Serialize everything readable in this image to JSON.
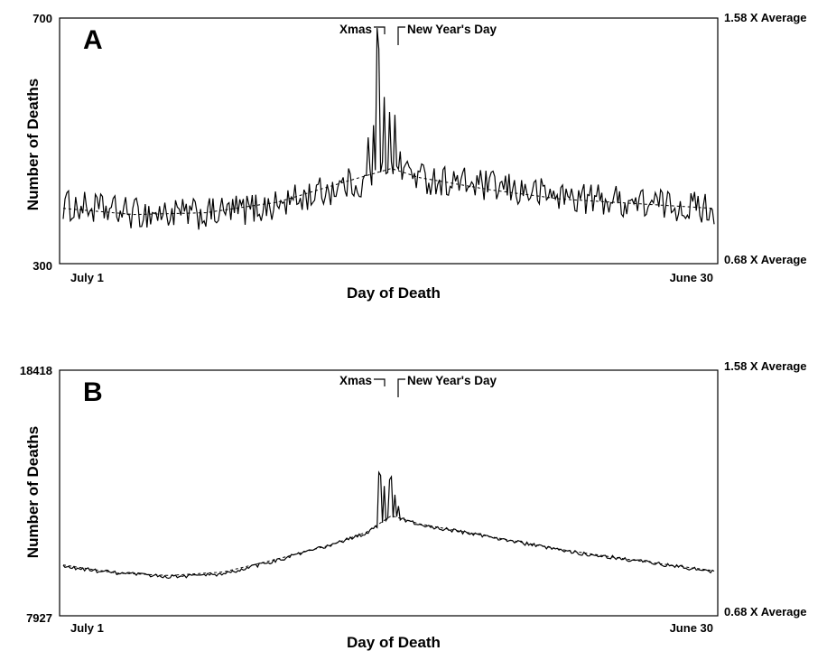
{
  "chart_data": [
    {
      "type": "line",
      "panel_label": "A",
      "title": "",
      "xlabel": "Day of Death",
      "ylabel": "Number of Deaths",
      "ylim": [
        300,
        700
      ],
      "y_ticks": [
        "700",
        "300"
      ],
      "right_axis_labels": {
        "top": "1.58 X Average",
        "bottom": "0.68 X Average"
      },
      "x_tick_labels": {
        "start": "July 1",
        "end": "June 30"
      },
      "annotations": {
        "left": "Xmas",
        "right": "New Year's Day"
      },
      "x_range_days": 365,
      "holiday_days": {
        "xmas": 177,
        "new_year": 184
      },
      "series": [
        {
          "style": "solid",
          "baseline": [
            [
              0,
              395
            ],
            [
              40,
              382
            ],
            [
              80,
              380
            ],
            [
              120,
              395
            ],
            [
              160,
              430
            ],
            [
              178,
              445
            ],
            [
              184,
              470
            ],
            [
              200,
              440
            ],
            [
              240,
              425
            ],
            [
              280,
              410
            ],
            [
              320,
              400
            ],
            [
              365,
              390
            ]
          ],
          "noise": 26,
          "spikes": [
            [
              167,
              -45
            ],
            [
              171,
              60
            ],
            [
              174,
              100
            ],
            [
              176,
              230
            ],
            [
              177,
              185
            ],
            [
              180,
              130
            ],
            [
              183,
              95
            ],
            [
              186,
              55
            ]
          ]
        },
        {
          "name": "",
          "style": "dashed",
          "points": [
            [
              0,
              390
            ],
            [
              40,
              380
            ],
            [
              80,
              383
            ],
            [
              120,
              400
            ],
            [
              160,
              435
            ],
            [
              184,
              455
            ],
            [
              200,
              440
            ],
            [
              240,
              420
            ],
            [
              280,
              405
            ],
            [
              320,
              398
            ],
            [
              365,
              390
            ]
          ]
        }
      ]
    },
    {
      "type": "line",
      "panel_label": "B",
      "title": "",
      "xlabel": "Day of Death",
      "ylabel": "Number of Deaths",
      "ylim": [
        7927,
        18418
      ],
      "y_ticks": [
        "18418",
        "7927"
      ],
      "right_axis_labels": {
        "top": "1.58 X Average",
        "bottom": "0.68 X Average"
      },
      "x_tick_labels": {
        "start": "July 1",
        "end": "June 30"
      },
      "annotations": {
        "left": "Xmas",
        "right": "New Year's Day"
      },
      "x_range_days": 365,
      "holiday_days": {
        "xmas": 177,
        "new_year": 184
      },
      "series": [
        {
          "style": "solid",
          "baseline": [
            [
              0,
              10020
            ],
            [
              30,
              9750
            ],
            [
              60,
              9600
            ],
            [
              90,
              9700
            ],
            [
              120,
              10300
            ],
            [
              150,
              10950
            ],
            [
              170,
              11450
            ],
            [
              184,
              12200
            ],
            [
              200,
              11800
            ],
            [
              240,
              11300
            ],
            [
              280,
              10700
            ],
            [
              320,
              10300
            ],
            [
              365,
              9800
            ]
          ],
          "noise": 80,
          "spikes": [
            [
              177,
              2200
            ],
            [
              178,
              2100
            ],
            [
              180,
              1500
            ],
            [
              183,
              1650
            ],
            [
              184,
              1700
            ],
            [
              186,
              1000
            ],
            [
              188,
              500
            ]
          ]
        },
        {
          "name": "",
          "style": "dashed",
          "points": [
            [
              0,
              10100
            ],
            [
              30,
              9750
            ],
            [
              60,
              9650
            ],
            [
              90,
              9800
            ],
            [
              120,
              10350
            ],
            [
              150,
              10950
            ],
            [
              170,
              11500
            ],
            [
              184,
              12200
            ],
            [
              200,
              11850
            ],
            [
              240,
              11300
            ],
            [
              280,
              10750
            ],
            [
              320,
              10300
            ],
            [
              365,
              9850
            ]
          ]
        }
      ]
    }
  ]
}
